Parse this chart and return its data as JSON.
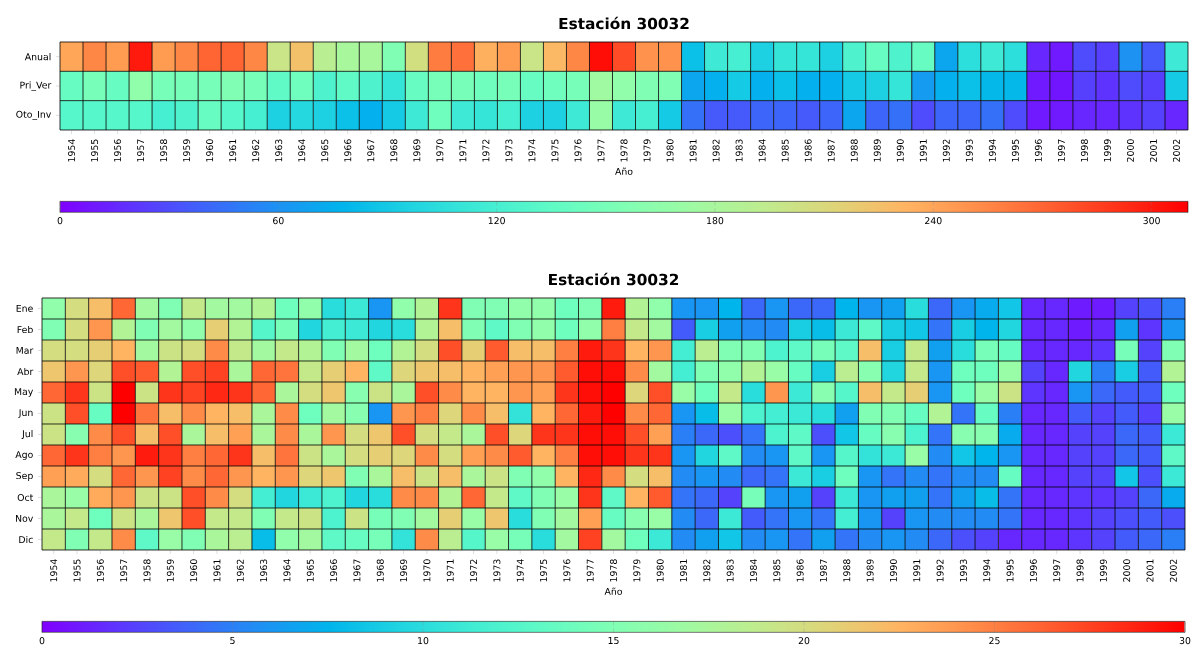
{
  "chart_data": [
    {
      "type": "heatmap",
      "title": "Estación 30032",
      "xlabel": "Año",
      "categories": [
        "1954",
        "1955",
        "1956",
        "1957",
        "1958",
        "1959",
        "1960",
        "1961",
        "1962",
        "1963",
        "1964",
        "1965",
        "1966",
        "1967",
        "1968",
        "1969",
        "1970",
        "1971",
        "1972",
        "1973",
        "1974",
        "1975",
        "1976",
        "1977",
        "1978",
        "1979",
        "1980",
        "1981",
        "1982",
        "1983",
        "1984",
        "1985",
        "1986",
        "1987",
        "1988",
        "1989",
        "1990",
        "1991",
        "1992",
        "1993",
        "1994",
        "1995",
        "1996",
        "1997",
        "1998",
        "1999",
        "2000",
        "2001",
        "2002"
      ],
      "y_categories": [
        "Anual",
        "Pri_Ver",
        "Oto_Inv"
      ],
      "cells": [
        [
          240,
          255,
          245,
          300,
          245,
          255,
          270,
          270,
          255,
          200,
          225,
          190,
          180,
          180,
          155,
          205,
          260,
          265,
          235,
          245,
          200,
          230,
          255,
          305,
          280,
          250,
          250,
          85,
          115,
          120,
          95,
          110,
          110,
          95,
          125,
          140,
          125,
          140,
          70,
          105,
          115,
          105,
          15,
          10,
          30,
          25,
          60,
          35,
          115
        ],
        [
          140,
          150,
          140,
          165,
          150,
          150,
          150,
          155,
          150,
          135,
          145,
          125,
          135,
          125,
          110,
          140,
          150,
          150,
          145,
          150,
          140,
          145,
          150,
          175,
          165,
          155,
          155,
          70,
          75,
          90,
          75,
          85,
          75,
          75,
          90,
          95,
          110,
          65,
          75,
          85,
          80,
          80,
          10,
          8,
          25,
          20,
          30,
          25,
          90
        ],
        [
          130,
          130,
          130,
          130,
          120,
          125,
          140,
          130,
          120,
          95,
          100,
          95,
          85,
          75,
          90,
          115,
          145,
          115,
          110,
          120,
          95,
          95,
          115,
          170,
          115,
          120,
          90,
          45,
          35,
          35,
          40,
          40,
          35,
          40,
          70,
          40,
          45,
          30,
          40,
          40,
          45,
          30,
          10,
          10,
          15,
          15,
          20,
          25,
          15
        ]
      ],
      "clim": [
        0,
        310
      ],
      "cticks": [
        0,
        60,
        120,
        180,
        240,
        300
      ],
      "grid": true
    },
    {
      "type": "heatmap",
      "title": "Estación 30032",
      "xlabel": "Año",
      "categories": [
        "1954",
        "1955",
        "1956",
        "1957",
        "1958",
        "1959",
        "1960",
        "1961",
        "1962",
        "1963",
        "1964",
        "1965",
        "1966",
        "1967",
        "1968",
        "1969",
        "1970",
        "1971",
        "1972",
        "1973",
        "1974",
        "1975",
        "1976",
        "1977",
        "1978",
        "1979",
        "1980",
        "1981",
        "1982",
        "1983",
        "1984",
        "1985",
        "1986",
        "1987",
        "1988",
        "1989",
        "1990",
        "1991",
        "1992",
        "1993",
        "1994",
        "1995",
        "1996",
        "1997",
        "1998",
        "1999",
        "2000",
        "2001",
        "2002"
      ],
      "y_categories": [
        "Ene",
        "Feb",
        "Mar",
        "Abr",
        "May",
        "Jun",
        "Jul",
        "Ago",
        "Sep",
        "Oct",
        "Nov",
        "Dic"
      ],
      "cells": [
        [
          16,
          20,
          22,
          26,
          17,
          15,
          19,
          17,
          17,
          18,
          14,
          16,
          10,
          11,
          6,
          16,
          18,
          28,
          15,
          15,
          16,
          16,
          14,
          15,
          29,
          18,
          16,
          6,
          6,
          7.5,
          4,
          6,
          4,
          4,
          7.5,
          6,
          6.5,
          10,
          4,
          6,
          7,
          8.5,
          1.5,
          1.5,
          1,
          1,
          2.5,
          3,
          5
        ],
        [
          15,
          20,
          24,
          18,
          15,
          17,
          16,
          21,
          18,
          12.5,
          14.5,
          9.5,
          11.5,
          11,
          9.5,
          10,
          18,
          22,
          15,
          13,
          15,
          16,
          14,
          16,
          25,
          19,
          17,
          3.5,
          9,
          6.5,
          5.5,
          5.5,
          9,
          8,
          11,
          13,
          9,
          8.5,
          4.5,
          9,
          7.5,
          9.5,
          1.5,
          1.5,
          1,
          1.5,
          6.5,
          2,
          6
        ],
        [
          20,
          20,
          21,
          22.5,
          17,
          19.5,
          20,
          24.5,
          19,
          17,
          19,
          18,
          15,
          17,
          14,
          18,
          20,
          27,
          21,
          26.5,
          22,
          22,
          25,
          29,
          28,
          22.5,
          24,
          11.5,
          18.5,
          15,
          15,
          12,
          13,
          14.5,
          13,
          22,
          9,
          19,
          6.5,
          10,
          14.5,
          13.5,
          1.5,
          1.5,
          1.5,
          2,
          14.5,
          2.5,
          15
        ],
        [
          21.5,
          24,
          20.5,
          27,
          26.5,
          18,
          27,
          27.5,
          17.5,
          26,
          25.5,
          19,
          21,
          22.5,
          13,
          20.5,
          21.5,
          22,
          22.5,
          23.5,
          24,
          24,
          26.5,
          29.5,
          29.5,
          24.5,
          17,
          11.5,
          15,
          16,
          18,
          16.5,
          13.5,
          9,
          18.5,
          15.5,
          9.5,
          19,
          6,
          14,
          14,
          16.5,
          2.5,
          1.5,
          9.5,
          5,
          9,
          3.5,
          18
        ],
        [
          26,
          28,
          19.5,
          30,
          19.5,
          28,
          27.5,
          28.5,
          28,
          26,
          17.5,
          20,
          21.5,
          15.5,
          19.5,
          17.5,
          27,
          24.5,
          22.5,
          22.5,
          24,
          23.5,
          28,
          29.5,
          30,
          20.5,
          27,
          16.5,
          14,
          19,
          10,
          24,
          11,
          15.5,
          12.5,
          22,
          19,
          21,
          6,
          14,
          16.5,
          19.5,
          2,
          1.5,
          6,
          4,
          3.5,
          3.5,
          14
        ],
        [
          19.5,
          27,
          13.5,
          30,
          25.5,
          22,
          24.5,
          22.5,
          22,
          17.5,
          24.5,
          14,
          17,
          15.5,
          6,
          24,
          25,
          20.5,
          24.5,
          22,
          10.5,
          22.5,
          26,
          29,
          30,
          24.5,
          26,
          6,
          8,
          16.5,
          12,
          11.5,
          11,
          10,
          6.5,
          15,
          15,
          13.5,
          18,
          4.5,
          13.5,
          5,
          1.5,
          1.5,
          3.5,
          2.5,
          3.5,
          2.5,
          16.5
        ],
        [
          19.5,
          15.5,
          24.5,
          27,
          22,
          27,
          17.5,
          22,
          23.5,
          17.5,
          24.5,
          17.5,
          24,
          20,
          21.5,
          27,
          20,
          19,
          17.5,
          27,
          20.5,
          28,
          28,
          29.5,
          29.5,
          27,
          23.5,
          5,
          4,
          3,
          4.5,
          12,
          13,
          3,
          8.5,
          13.5,
          15.5,
          12,
          4.5,
          15.5,
          15.5,
          7,
          1.5,
          1.5,
          2.5,
          2.5,
          4,
          3.5,
          11
        ],
        [
          26,
          28,
          25,
          24,
          29,
          28,
          25,
          26,
          28,
          22,
          25.5,
          19.5,
          17.5,
          20,
          21,
          20.5,
          24.5,
          20,
          23.5,
          24.5,
          26.5,
          22.5,
          25,
          29.5,
          29.5,
          28,
          28,
          6,
          9.5,
          13,
          5.5,
          6,
          13,
          6,
          12.5,
          10.5,
          11,
          16.5,
          5.5,
          8.5,
          7.5,
          6,
          1.5,
          1.5,
          2.5,
          2.5,
          4,
          3.5,
          13
        ],
        [
          23.5,
          23,
          20,
          26,
          24,
          27.5,
          24.5,
          26,
          24,
          22.5,
          24,
          20.5,
          21.5,
          15,
          17.5,
          22,
          19.5,
          22,
          17.5,
          19.5,
          15,
          16,
          22.5,
          28.5,
          24.5,
          20,
          22,
          5.5,
          6,
          5.5,
          4,
          4.5,
          11,
          9,
          14,
          6,
          4.5,
          5.5,
          4.5,
          5.5,
          5.5,
          13.5,
          1.5,
          1.5,
          2.5,
          2.5,
          8.5,
          3,
          11
        ],
        [
          17.5,
          16.5,
          23,
          24,
          19.5,
          19.5,
          27,
          24.5,
          20,
          11.5,
          9.5,
          11,
          12,
          9.5,
          10,
          24.5,
          24.5,
          18,
          26,
          19,
          13,
          15,
          16.5,
          28,
          13,
          22.5,
          26.5,
          4.5,
          4,
          2.5,
          14.5,
          6,
          6.5,
          2.5,
          11,
          6,
          6.5,
          6.5,
          4.5,
          6.5,
          8,
          4.5,
          1.5,
          1.5,
          2,
          2,
          2.5,
          4,
          7
        ],
        [
          17.5,
          19,
          14,
          19.5,
          17.5,
          21.5,
          27,
          19,
          19,
          15,
          19,
          19.5,
          12,
          19.5,
          14.5,
          15,
          17,
          21,
          16.5,
          21.5,
          10,
          15,
          17,
          23.5,
          13.5,
          15.5,
          16.5,
          5.5,
          4,
          11,
          3.5,
          4.5,
          6,
          4.5,
          11.5,
          6,
          2.5,
          6,
          5.5,
          5.5,
          5.5,
          4.5,
          1.5,
          1.5,
          2,
          2.5,
          3,
          3.5,
          3
        ],
        [
          19,
          15,
          19,
          24.5,
          13,
          16.5,
          15,
          17.5,
          18.5,
          8,
          16,
          17,
          13,
          13.5,
          14.5,
          10.5,
          24.5,
          18.5,
          12.5,
          16.5,
          14.5,
          10,
          17,
          27.5,
          17,
          14,
          11,
          5.5,
          6.5,
          8.5,
          5.5,
          6,
          4.5,
          6.5,
          4.5,
          5.5,
          6,
          5.5,
          4,
          3,
          2.5,
          1.5,
          1.5,
          1.5,
          2,
          2.5,
          3.5,
          4,
          5
        ]
      ],
      "clim": [
        0,
        30
      ],
      "cticks": [
        0,
        5,
        10,
        15,
        20,
        25,
        30
      ],
      "grid": true
    }
  ]
}
